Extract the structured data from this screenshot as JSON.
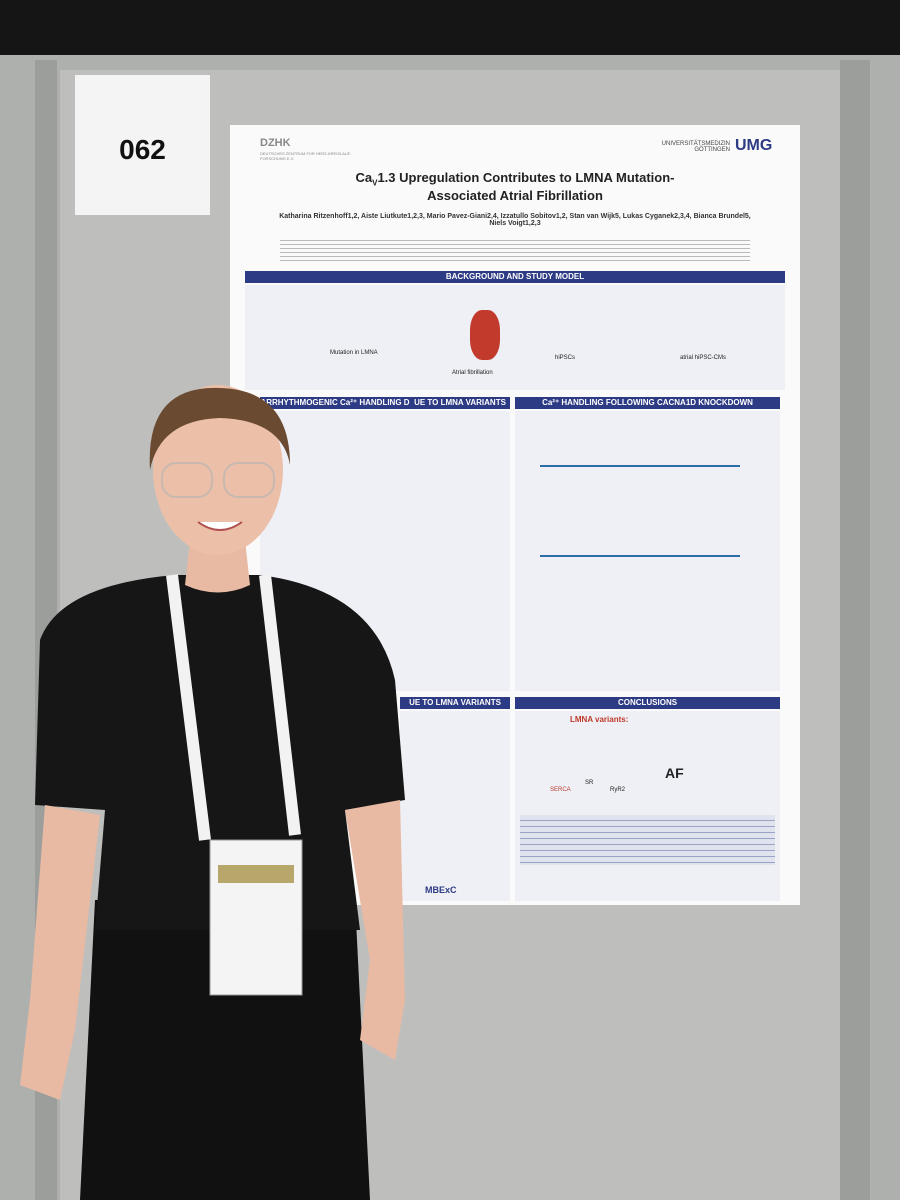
{
  "board": {
    "number": "062"
  },
  "poster": {
    "logo_left": "DZHK",
    "logo_left_sub": "DEUTSCHES ZENTRUM FÜR HERZ-KREISLAUF-FORSCHUNG E.V.",
    "logo_right": "UNIVERSITÄTSMEDIZIN GÖTTINGEN",
    "logo_right_mark": "UMG",
    "title_prefix": "Ca",
    "title_sub": "V",
    "title_rest": "1.3 Upregulation Contributes to LMNA Mutation-Associated Atrial Fibrillation",
    "authors": "Katharina Ritzenhoff1,2, Aiste Liutkute1,2,3, Mario Pavez-Giani2,4, Izzatullo Sobitov1,2, Stan van Wijk5, Lukas Cyganek2,3,4, Bianca Brundel5, Niels Voigt1,2,3",
    "sections": {
      "background": "BACKGROUND AND STUDY MODEL",
      "arrhythmogenic": "ARRHYTHMOGENIC Ca²⁺ HANDLING D",
      "arrhythmogenic_tail": "UE TO LMNA VARIANTS",
      "knockdown": "Ca²⁺ HANDLING FOLLOWING CACNA1D KNOCKDOWN",
      "lower_tail": "UE TO LMNA VARIANTS",
      "conclusions": "CONCLUSIONS"
    },
    "labels": {
      "mutation": "Mutation in LMNA",
      "af_fig": "Atrial fibrillation",
      "hipscs": "hiPSCs",
      "atrial": "atrial hiPSC-CMs",
      "lmna_variants": "LMNA variants:",
      "af": "AF",
      "serca": "SERCA",
      "sr": "SR",
      "ryr2": "RyR2",
      "mbexc": "MBExC"
    }
  }
}
